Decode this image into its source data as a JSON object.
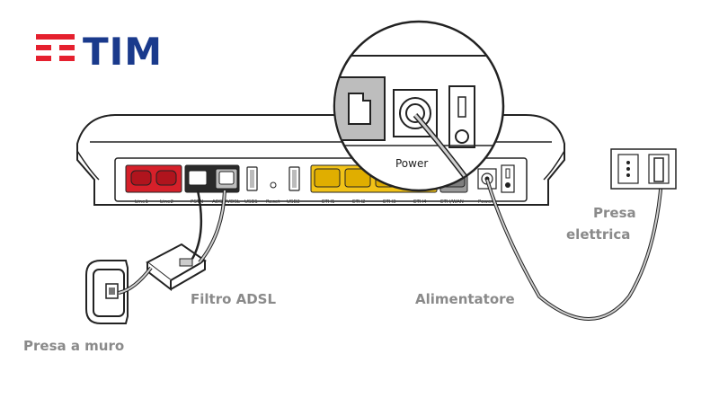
{
  "brand": {
    "logo_text": "TIM",
    "logo_blue": "#1a3a8c",
    "logo_red": "#e5202e"
  },
  "labels": {
    "wall_socket": "Presa a muro",
    "adsl_filter": "Filtro ADSL",
    "power_supply": "Alimentatore",
    "power_outlet_line1": "Presa",
    "power_outlet_line2": "elettrica",
    "zoom_power": "Power"
  },
  "ports": {
    "line1": "Line1",
    "line2": "Line2",
    "pstn": "PSTN",
    "adsl": "ADSL/VDSL",
    "usb1": "USB1",
    "reset": "Reset",
    "usb2": "USB2",
    "eth1": "ETH1",
    "eth2": "ETH2",
    "eth3": "ETH3",
    "eth4": "ETH4",
    "ethwan": "ETH/WAN",
    "power": "Power"
  },
  "colors": {
    "phone_ports": "#d6202a",
    "eth_ports": "#f2c318",
    "wan_port": "#9a9a9a",
    "label_gray": "#8a8a8a"
  }
}
